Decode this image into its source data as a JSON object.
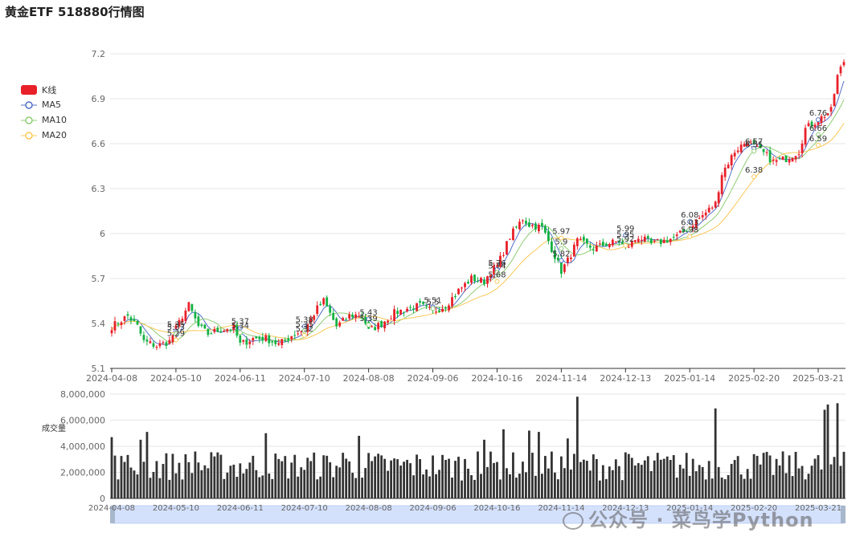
{
  "title": "黄金ETF 518880行情图",
  "legend": [
    {
      "name": "K线",
      "color": "#e8202a",
      "style": "rect"
    },
    {
      "name": "MA5",
      "color": "#5470c6",
      "style": "circle"
    },
    {
      "name": "MA10",
      "color": "#91cc75",
      "style": "circle"
    },
    {
      "name": "MA20",
      "color": "#fac858",
      "style": "circle"
    }
  ],
  "colors": {
    "up": "#e8202a",
    "down": "#14b143",
    "volume": "#333333",
    "grid": "#e6e6e6",
    "axis": "#666666",
    "ma5": "#5470c6",
    "ma10": "#91cc75",
    "ma20": "#fac858",
    "slider": "#c8d5f2"
  },
  "volume_axis_label": "成交量",
  "watermark": "公众号 · 菜鸟学Python",
  "chart_data": [
    {
      "type": "candlestick",
      "title": "黄金ETF 518880行情图",
      "ylim": [
        5.1,
        7.2
      ],
      "yticks": [
        5.1,
        5.4,
        5.7,
        6,
        6.3,
        6.6,
        6.9,
        7.2
      ],
      "x_tick_labels": [
        "2024-04-08",
        "2024-05-10",
        "2024-06-11",
        "2024-07-10",
        "2024-08-08",
        "2024-09-06",
        "2024-10-16",
        "2024-11-14",
        "2024-12-13",
        "2025-01-14",
        "2025-02-20",
        "2025-03-21"
      ],
      "x_tick_index": [
        0,
        20,
        40,
        60,
        80,
        100,
        120,
        140,
        160,
        180,
        200,
        220
      ],
      "n_points": 229,
      "anchors": [
        [
          0,
          5.38
        ],
        [
          5,
          5.45
        ],
        [
          8,
          5.38
        ],
        [
          10,
          5.28
        ],
        [
          14,
          5.25
        ],
        [
          18,
          5.28
        ],
        [
          22,
          5.45
        ],
        [
          24,
          5.52
        ],
        [
          27,
          5.38
        ],
        [
          30,
          5.33
        ],
        [
          34,
          5.36
        ],
        [
          38,
          5.37
        ],
        [
          40,
          5.26
        ],
        [
          44,
          5.3
        ],
        [
          48,
          5.3
        ],
        [
          52,
          5.26
        ],
        [
          56,
          5.32
        ],
        [
          60,
          5.36
        ],
        [
          64,
          5.5
        ],
        [
          66,
          5.55
        ],
        [
          70,
          5.38
        ],
        [
          74,
          5.45
        ],
        [
          78,
          5.46
        ],
        [
          80,
          5.35
        ],
        [
          84,
          5.4
        ],
        [
          88,
          5.47
        ],
        [
          92,
          5.5
        ],
        [
          96,
          5.52
        ],
        [
          100,
          5.48
        ],
        [
          104,
          5.52
        ],
        [
          108,
          5.62
        ],
        [
          112,
          5.7
        ],
        [
          116,
          5.68
        ],
        [
          118,
          5.75
        ],
        [
          120,
          5.78
        ],
        [
          124,
          5.98
        ],
        [
          128,
          6.1
        ],
        [
          130,
          6.06
        ],
        [
          134,
          6.04
        ],
        [
          136,
          5.95
        ],
        [
          138,
          5.85
        ],
        [
          140,
          5.75
        ],
        [
          142,
          5.82
        ],
        [
          145,
          5.95
        ],
        [
          150,
          5.9
        ],
        [
          154,
          5.93
        ],
        [
          158,
          5.95
        ],
        [
          160,
          5.9
        ],
        [
          164,
          5.98
        ],
        [
          168,
          5.93
        ],
        [
          172,
          5.95
        ],
        [
          176,
          5.98
        ],
        [
          180,
          6.05
        ],
        [
          184,
          6.12
        ],
        [
          188,
          6.2
        ],
        [
          190,
          6.4
        ],
        [
          194,
          6.55
        ],
        [
          198,
          6.62
        ],
        [
          200,
          6.58
        ],
        [
          204,
          6.52
        ],
        [
          206,
          6.48
        ],
        [
          210,
          6.5
        ],
        [
          214,
          6.55
        ],
        [
          216,
          6.7
        ],
        [
          220,
          6.76
        ],
        [
          224,
          6.82
        ],
        [
          226,
          7.05
        ],
        [
          228,
          7.15
        ]
      ],
      "markers": [
        {
          "i": 20,
          "label": "5.35",
          "series": "MA5"
        },
        {
          "i": 20,
          "label": "5.33",
          "series": "MA10"
        },
        {
          "i": 20,
          "label": "5.29",
          "series": "MA20"
        },
        {
          "i": 40,
          "label": "5.37",
          "series": "MA5"
        },
        {
          "i": 40,
          "label": "5.34",
          "series": "MA10"
        },
        {
          "i": 60,
          "label": "5.38",
          "series": "MA5"
        },
        {
          "i": 60,
          "label": "5.35",
          "series": "MA10"
        },
        {
          "i": 60,
          "label": "5.32",
          "series": "MA20"
        },
        {
          "i": 80,
          "label": "5.43",
          "series": "MA5"
        },
        {
          "i": 80,
          "label": "5.39",
          "series": "MA10"
        },
        {
          "i": 100,
          "label": "5.51",
          "series": "MA5"
        },
        {
          "i": 100,
          "label": "5.5",
          "series": "MA10"
        },
        {
          "i": 120,
          "label": "5.76",
          "series": "MA5"
        },
        {
          "i": 120,
          "label": "5.74",
          "series": "MA10"
        },
        {
          "i": 120,
          "label": "5.68",
          "series": "MA20"
        },
        {
          "i": 140,
          "label": "5.97",
          "series": "MA20"
        },
        {
          "i": 140,
          "label": "5.9",
          "series": "MA10"
        },
        {
          "i": 140,
          "label": "5.82",
          "series": "MA5"
        },
        {
          "i": 160,
          "label": "5.99",
          "series": "MA5"
        },
        {
          "i": 160,
          "label": "5.95",
          "series": "MA10"
        },
        {
          "i": 160,
          "label": "5.92",
          "series": "MA20"
        },
        {
          "i": 180,
          "label": "6.08",
          "series": "MA5"
        },
        {
          "i": 180,
          "label": "6.03",
          "series": "MA10"
        },
        {
          "i": 180,
          "label": "5.98",
          "series": "MA20"
        },
        {
          "i": 200,
          "label": "6.57",
          "series": "MA5"
        },
        {
          "i": 200,
          "label": "6.55",
          "series": "MA10"
        },
        {
          "i": 200,
          "label": "6.38",
          "series": "MA20"
        },
        {
          "i": 220,
          "label": "6.76",
          "series": "MA5"
        },
        {
          "i": 220,
          "label": "6.66",
          "series": "MA10"
        },
        {
          "i": 220,
          "label": "6.59",
          "series": "MA20"
        }
      ]
    },
    {
      "type": "bar",
      "ylabel": "成交量",
      "ylim": [
        0,
        8000000
      ],
      "yticks": [
        0,
        2000000,
        4000000,
        6000000,
        8000000
      ],
      "ytick_labels": [
        "0",
        "2,000,000",
        "4,000,000",
        "6,000,000",
        "8,000,000"
      ],
      "n_points": 229,
      "typical_value": 2500000,
      "peaks": [
        [
          0,
          4700000
        ],
        [
          4,
          2800000
        ],
        [
          9,
          4500000
        ],
        [
          11,
          5100000
        ],
        [
          26,
          3600000
        ],
        [
          48,
          5000000
        ],
        [
          72,
          3500000
        ],
        [
          77,
          4800000
        ],
        [
          114,
          3600000
        ],
        [
          116,
          4500000
        ],
        [
          122,
          5300000
        ],
        [
          130,
          5200000
        ],
        [
          133,
          5100000
        ],
        [
          142,
          4600000
        ],
        [
          145,
          7800000
        ],
        [
          188,
          6900000
        ],
        [
          222,
          6800000
        ],
        [
          223,
          7200000
        ],
        [
          226,
          7300000
        ]
      ]
    }
  ]
}
